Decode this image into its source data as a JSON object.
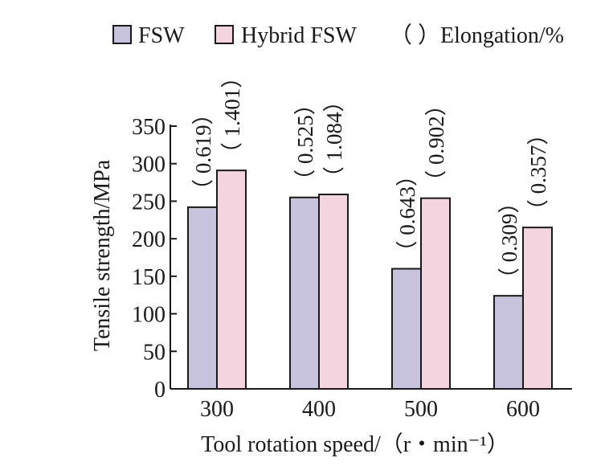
{
  "chart_data": {
    "type": "bar",
    "categories": [
      "300",
      "400",
      "500",
      "600"
    ],
    "series": [
      {
        "name": "FSW",
        "values": [
          242,
          255,
          160,
          124
        ],
        "elongation": [
          "0.619",
          "0.525",
          "0.643",
          "0.309"
        ],
        "color": "#c8c3dc"
      },
      {
        "name": "Hybrid FSW",
        "values": [
          291,
          259,
          254,
          215
        ],
        "elongation": [
          "1.401",
          "1.084",
          "0.902",
          "0.357"
        ],
        "color": "#f4d4df"
      }
    ],
    "legend_extra": "（ ）Elongation/%",
    "xlabel": "Tool rotation speed/（r・min⁻¹）",
    "ylabel": "Tensile strength/MPa",
    "ylim": [
      0,
      350
    ],
    "yticks": [
      "0",
      "50",
      "100",
      "150",
      "200",
      "250",
      "300",
      "350"
    ],
    "grid": false,
    "legend_position": "top"
  }
}
